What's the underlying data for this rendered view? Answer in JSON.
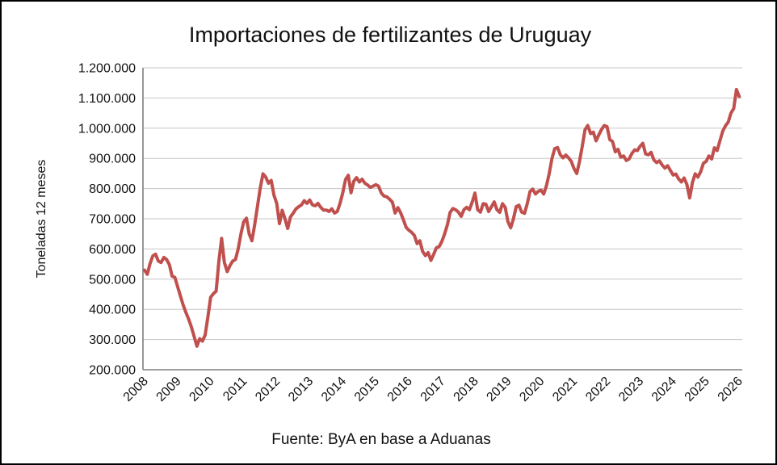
{
  "chart_data": {
    "type": "line",
    "title": "Importaciones de fertilizantes de Uruguay",
    "ylabel": "Toneladas 12 meses",
    "source_note": "Fuente: ByA en base a Aduanas",
    "legend": "none",
    "grid": true,
    "line_color": "#C0504D",
    "gridline_color": "#C6C6C6",
    "axis_color": "#7F7F7F",
    "ylim": [
      200000,
      1200000
    ],
    "ytick_step": 100000,
    "ytick_labels_top_to_bottom": [
      "1.200.000",
      "1.100.000",
      "1.000.000",
      "900.000",
      "800.000",
      "700.000",
      "600.000",
      "500.000",
      "400.000",
      "300.000",
      "200.000"
    ],
    "x_tick_labels": [
      "2008",
      "2009",
      "2010",
      "2011",
      "2012",
      "2013",
      "2014",
      "2015",
      "2016",
      "2017",
      "2018",
      "2019",
      "2020",
      "2021",
      "2022",
      "2023",
      "2024",
      "2025",
      "2026"
    ],
    "x_start_year": 2008,
    "points_per_year": 12,
    "series": [
      {
        "values": [
          530000,
          516000,
          552000,
          577000,
          583000,
          560000,
          555000,
          572000,
          565000,
          548000,
          510000,
          506000,
          475000,
          445000,
          415000,
          390000,
          368000,
          342000,
          310000,
          278000,
          303000,
          295000,
          315000,
          375000,
          440000,
          452000,
          460000,
          560000,
          635000,
          555000,
          525000,
          545000,
          560000,
          565000,
          600000,
          650000,
          690000,
          702000,
          650000,
          627000,
          680000,
          740000,
          800000,
          849000,
          838000,
          818000,
          827000,
          778000,
          751000,
          684000,
          728000,
          700000,
          668000,
          706000,
          719000,
          733000,
          740000,
          746000,
          760000,
          751000,
          762000,
          746000,
          743000,
          751000,
          738000,
          729000,
          729000,
          724000,
          733000,
          719000,
          724000,
          751000,
          786000,
          830000,
          844000,
          786000,
          824000,
          836000,
          822000,
          831000,
          818000,
          812000,
          804000,
          808000,
          813000,
          808000,
          785000,
          775000,
          773000,
          765000,
          755000,
          719000,
          737000,
          720000,
          697000,
          672000,
          662000,
          655000,
          645000,
          618000,
          627000,
          592000,
          578000,
          588000,
          562000,
          582000,
          604000,
          608000,
          625000,
          650000,
          680000,
          721000,
          734000,
          730000,
          722000,
          708000,
          730000,
          738000,
          730000,
          755000,
          785000,
          730000,
          722000,
          750000,
          748000,
          724000,
          740000,
          756000,
          730000,
          721000,
          750000,
          738000,
          690000,
          670000,
          700000,
          740000,
          745000,
          722000,
          718000,
          750000,
          790000,
          798000,
          782000,
          791000,
          795000,
          782000,
          810000,
          850000,
          900000,
          932000,
          936000,
          912000,
          902000,
          911000,
          902000,
          890000,
          866000,
          850000,
          890000,
          940000,
          995000,
          1009000,
          982000,
          987000,
          958000,
          978000,
          996000,
          1009000,
          1005000,
          962000,
          956000,
          922000,
          930000,
          904000,
          908000,
          893000,
          898000,
          916000,
          928000,
          926000,
          940000,
          950000,
          915000,
          912000,
          920000,
          895000,
          886000,
          892000,
          878000,
          868000,
          876000,
          860000,
          845000,
          848000,
          832000,
          822000,
          835000,
          814000,
          769000,
          820000,
          849000,
          838000,
          856000,
          884000,
          890000,
          908000,
          898000,
          935000,
          926000,
          958000,
          990000,
          1008000,
          1020000,
          1050000,
          1065000,
          1128000,
          1105000
        ]
      }
    ]
  }
}
